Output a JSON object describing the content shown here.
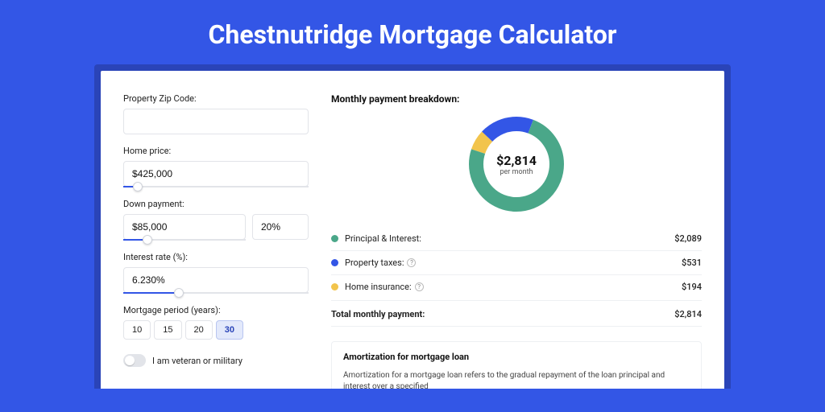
{
  "page": {
    "title": "Chestnutridge Mortgage Calculator",
    "background_color": "#3356e6",
    "shadow_color": "#2a44b8",
    "card_background": "#ffffff"
  },
  "form": {
    "zip": {
      "label": "Property Zip Code:",
      "value": ""
    },
    "home_price": {
      "label": "Home price:",
      "value": "$425,000",
      "slider_pct": 8
    },
    "down_payment": {
      "label": "Down payment:",
      "amount": "$85,000",
      "percent": "20%",
      "slider_pct": 20
    },
    "interest_rate": {
      "label": "Interest rate (%):",
      "value": "6.230%",
      "slider_pct": 30
    },
    "period": {
      "label": "Mortgage period (years):",
      "options": [
        "10",
        "15",
        "20",
        "30"
      ],
      "active_index": 3
    },
    "veteran": {
      "label": "I am veteran or military",
      "value": false
    }
  },
  "breakdown": {
    "title": "Monthly payment breakdown:",
    "chart": {
      "type": "donut",
      "center_amount": "$2,814",
      "center_sub": "per month",
      "stroke_width": 18,
      "background_color": "#ffffff",
      "segments": [
        {
          "key": "principal_interest",
          "color": "#4aa789",
          "value": 2089
        },
        {
          "key": "property_taxes",
          "color": "#3356e6",
          "value": 531
        },
        {
          "key": "home_insurance",
          "color": "#f2c44c",
          "value": 194
        }
      ]
    },
    "rows": [
      {
        "dot": "#4aa789",
        "label": "Principal & Interest:",
        "help": false,
        "value": "$2,089"
      },
      {
        "dot": "#3356e6",
        "label": "Property taxes:",
        "help": true,
        "value": "$531"
      },
      {
        "dot": "#f2c44c",
        "label": "Home insurance:",
        "help": true,
        "value": "$194"
      }
    ],
    "total": {
      "label": "Total monthly payment:",
      "value": "$2,814"
    }
  },
  "amortization": {
    "title": "Amortization for mortgage loan",
    "text": "Amortization for a mortgage loan refers to the gradual repayment of the loan principal and interest over a specified"
  }
}
